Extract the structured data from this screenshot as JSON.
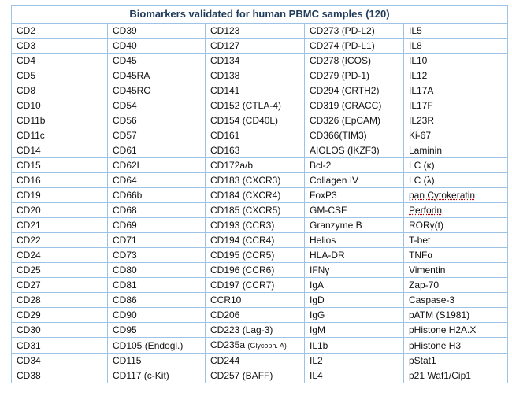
{
  "title": "Biomarkers validated for human PBMC samples (120)",
  "rows": [
    [
      "CD2",
      "CD39",
      "CD123",
      "CD273 (PD-L2)",
      "IL5"
    ],
    [
      "CD3",
      "CD40",
      "CD127",
      "CD274 (PD-L1)",
      "IL8"
    ],
    [
      "CD4",
      "CD45",
      "CD134",
      "CD278 (ICOS)",
      "IL10"
    ],
    [
      "CD5",
      "CD45RA",
      "CD138",
      "CD279 (PD-1)",
      "IL12"
    ],
    [
      "CD8",
      "CD45RO",
      "CD141",
      "CD294 (CRTH2)",
      "IL17A"
    ],
    [
      "CD10",
      "CD54",
      "CD152 (CTLA-4)",
      "CD319 (CRACC)",
      "IL17F"
    ],
    [
      "CD11b",
      "CD56",
      "CD154 (CD40L)",
      "CD326 (EpCAM)",
      "IL23R"
    ],
    [
      "CD11c",
      "CD57",
      "CD161",
      "CD366(TIM3)",
      "Ki-67"
    ],
    [
      "CD14",
      "CD61",
      "CD163",
      "AIOLOS (IKZF3)",
      "Laminin"
    ],
    [
      "CD15",
      "CD62L",
      "CD172a/b",
      "Bcl-2",
      "LC (κ)"
    ],
    [
      "CD16",
      "CD64",
      "CD183 (CXCR3)",
      "Collagen IV",
      "LC (λ)"
    ],
    [
      "CD19",
      "CD66b",
      "CD184 (CXCR4)",
      "FoxP3",
      "pan Cytokeratin"
    ],
    [
      "CD20",
      "CD68",
      "CD185 (CXCR5)",
      "GM-CSF",
      "Perforin"
    ],
    [
      "CD21",
      "CD69",
      "CD193 (CCR3)",
      "Granzyme B",
      "RORγ(t)"
    ],
    [
      "CD22",
      "CD71",
      "CD194 (CCR4)",
      "Helios",
      "T-bet"
    ],
    [
      "CD24",
      "CD73",
      "CD195 (CCR5)",
      "HLA-DR",
      "TNFα"
    ],
    [
      "CD25",
      "CD80",
      "CD196 (CCR6)",
      "IFNγ",
      "Vimentin"
    ],
    [
      "CD27",
      "CD81",
      "CD197 (CCR7)",
      "IgA",
      "Zap-70"
    ],
    [
      "CD28",
      "CD86",
      "CCR10",
      "IgD",
      "Caspase-3"
    ],
    [
      "CD29",
      "CD90",
      "CD206",
      "IgG",
      "pATM (S1981)"
    ],
    [
      "CD30",
      "CD95",
      "CD223 (Lag-3)",
      "IgM",
      "pHistone H2A.X"
    ],
    [
      "CD31",
      "CD105 (Endogl.)",
      "CD235a (Glycoph. A)",
      "IL1b",
      "pHistone H3"
    ],
    [
      "CD34",
      "CD115",
      "CD244",
      "IL2",
      "pStat1"
    ],
    [
      "CD38",
      "CD117 (c-Kit)",
      "CD257 (BAFF)",
      "IL4",
      "p21 Waf1/Cip1"
    ]
  ],
  "colors": {
    "border": "#9dc3e6",
    "title_text": "#1f3b5a",
    "text": "#111111"
  }
}
